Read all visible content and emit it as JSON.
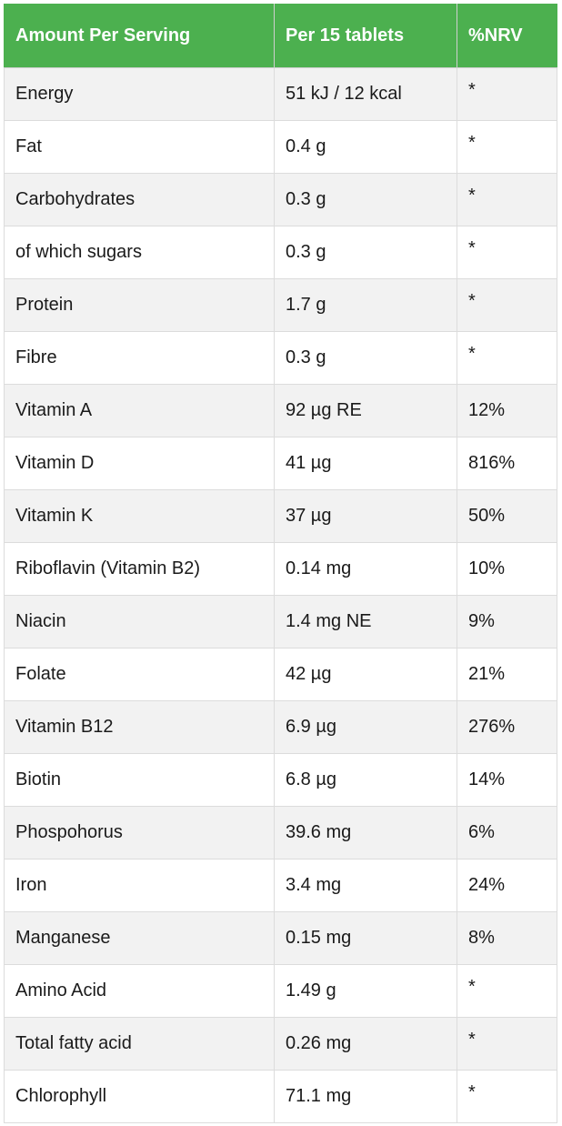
{
  "table": {
    "headers": [
      "Amount Per Serving",
      "Per 15 tablets",
      "%NRV"
    ],
    "rows": [
      [
        "Energy",
        "51 kJ / 12 kcal",
        "*"
      ],
      [
        "Fat",
        "0.4 g",
        "*"
      ],
      [
        "Carbohydrates",
        "0.3 g",
        "*"
      ],
      [
        "of which sugars",
        "0.3 g",
        "*"
      ],
      [
        "Protein",
        "1.7 g",
        "*"
      ],
      [
        "Fibre",
        "0.3 g",
        "*"
      ],
      [
        "Vitamin A",
        "92 µg RE",
        "12%"
      ],
      [
        "Vitamin D",
        "41 µg",
        "816%"
      ],
      [
        "Vitamin K",
        "37 µg",
        "50%"
      ],
      [
        "Riboflavin (Vitamin B2)",
        "0.14 mg",
        "10%"
      ],
      [
        "Niacin",
        "1.4 mg NE",
        "9%"
      ],
      [
        "Folate",
        "42 µg",
        "21%"
      ],
      [
        "Vitamin B12",
        "6.9 µg",
        "276%"
      ],
      [
        "Biotin",
        "6.8 µg",
        "14%"
      ],
      [
        "Phospohorus",
        "39.6 mg",
        "6%"
      ],
      [
        "Iron",
        "3.4 mg",
        "24%"
      ],
      [
        "Manganese",
        "0.15 mg",
        "8%"
      ],
      [
        "Amino Acid",
        "1.49 g",
        "*"
      ],
      [
        "Total fatty acid",
        "0.26 mg",
        "*"
      ],
      [
        "Chlorophyll",
        "71.1 mg",
        "*"
      ]
    ]
  },
  "colors": {
    "header_bg": "#4cb04f",
    "header_text": "#ffffff",
    "row_alt_bg": "#f2f2f2",
    "row_bg": "#ffffff"
  }
}
